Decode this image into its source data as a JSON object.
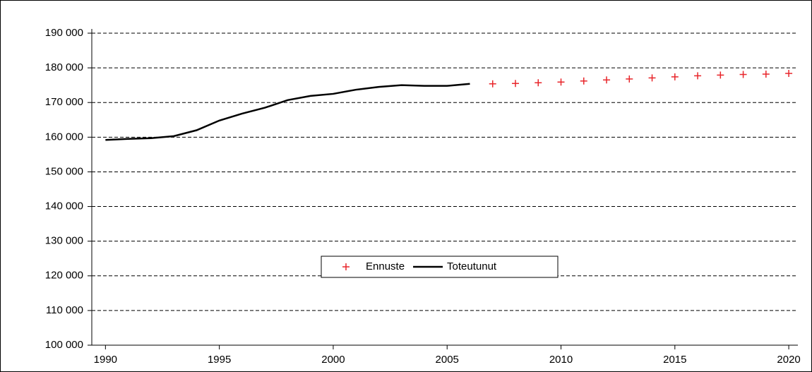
{
  "chart_data": {
    "type": "line",
    "x": [
      1990,
      1991,
      1992,
      1993,
      1994,
      1995,
      1996,
      1997,
      1998,
      1999,
      2000,
      2001,
      2002,
      2003,
      2004,
      2005,
      2006,
      2007,
      2008,
      2009,
      2010,
      2011,
      2012,
      2013,
      2014,
      2015,
      2016,
      2017,
      2018,
      2019,
      2020
    ],
    "series": [
      {
        "name": "Ennuste",
        "color": "#e8262b",
        "marker": "+",
        "values": [
          null,
          null,
          null,
          null,
          null,
          null,
          null,
          null,
          null,
          null,
          null,
          null,
          null,
          null,
          null,
          null,
          null,
          175400,
          175500,
          175700,
          175900,
          176200,
          176500,
          176800,
          177100,
          177400,
          177700,
          177900,
          178100,
          178200,
          178400
        ]
      },
      {
        "name": "Toteutunut",
        "color": "#000000",
        "marker": "none",
        "values": [
          159200,
          159500,
          159700,
          160300,
          162000,
          164800,
          166800,
          168500,
          170700,
          171900,
          172500,
          173700,
          174500,
          175000,
          174800,
          174800,
          175400,
          null,
          null,
          null,
          null,
          null,
          null,
          null,
          null,
          null,
          null,
          null,
          null,
          null,
          null
        ]
      }
    ],
    "xlim": [
      1989.4,
      2020.4
    ],
    "xticks": [
      1990,
      1995,
      2000,
      2005,
      2010,
      2015,
      2020
    ],
    "ylim": [
      100000,
      190000
    ],
    "yticks": [
      {
        "value": 100000,
        "label": "100 000"
      },
      {
        "value": 110000,
        "label": "110 000"
      },
      {
        "value": 120000,
        "label": "120 000"
      },
      {
        "value": 130000,
        "label": "130 000"
      },
      {
        "value": 140000,
        "label": "140 000"
      },
      {
        "value": 150000,
        "label": "150 000"
      },
      {
        "value": 160000,
        "label": "160 000"
      },
      {
        "value": 170000,
        "label": "170 000"
      },
      {
        "value": 180000,
        "label": "180 000"
      },
      {
        "value": 190000,
        "label": "190 000"
      }
    ],
    "grid": true,
    "legend": "center"
  }
}
